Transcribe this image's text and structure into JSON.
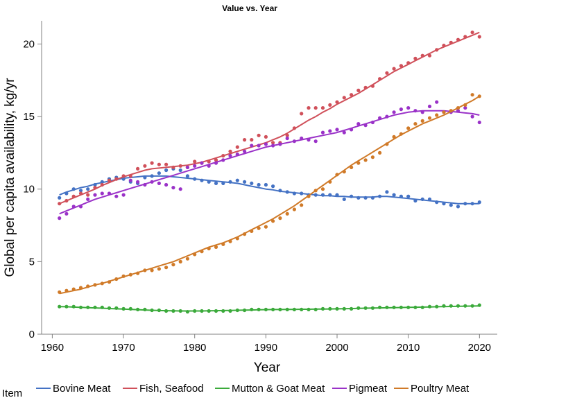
{
  "chart_data": {
    "type": "scatter",
    "title": "Value vs. Year",
    "xlabel": "Year",
    "ylabel": "Global per capita availability, kg/yr",
    "xlim": [
      1958.5,
      2022.5
    ],
    "ylim": [
      0,
      21.6
    ],
    "xticks": [
      "1960",
      "1970",
      "1980",
      "1990",
      "2000",
      "2010",
      "2020"
    ],
    "yticks": [
      "0",
      "5",
      "10",
      "15",
      "20"
    ],
    "grid": false,
    "legend": {
      "title": "Item",
      "placement": "bottom"
    },
    "x": [
      1961,
      1962,
      1963,
      1964,
      1965,
      1966,
      1967,
      1968,
      1969,
      1970,
      1971,
      1972,
      1973,
      1974,
      1975,
      1976,
      1977,
      1978,
      1979,
      1980,
      1981,
      1982,
      1983,
      1984,
      1985,
      1986,
      1987,
      1988,
      1989,
      1990,
      1991,
      1992,
      1993,
      1994,
      1995,
      1996,
      1997,
      1998,
      1999,
      2000,
      2001,
      2002,
      2003,
      2004,
      2005,
      2006,
      2007,
      2008,
      2009,
      2010,
      2011,
      2012,
      2013,
      2014,
      2015,
      2016,
      2017,
      2018,
      2019,
      2020
    ],
    "series": [
      {
        "name": "Bovine Meat",
        "color": "#4472C4",
        "values": [
          9.4,
          9.7,
          10.0,
          9.9,
          10.0,
          10.3,
          10.5,
          10.7,
          10.8,
          10.7,
          10.5,
          10.4,
          10.8,
          10.9,
          11.1,
          11.3,
          11.4,
          11.3,
          10.9,
          10.7,
          10.6,
          10.5,
          10.4,
          10.4,
          10.5,
          10.6,
          10.5,
          10.4,
          10.3,
          10.3,
          10.2,
          9.9,
          9.8,
          9.7,
          9.7,
          9.6,
          9.6,
          9.6,
          9.6,
          9.6,
          9.3,
          9.5,
          9.4,
          9.4,
          9.4,
          9.5,
          9.8,
          9.6,
          9.5,
          9.5,
          9.2,
          9.3,
          9.3,
          9.1,
          9.0,
          8.9,
          8.8,
          9.0,
          9.0,
          9.1
        ],
        "trend": [
          9.6,
          9.8,
          9.95,
          10.1,
          10.2,
          10.35,
          10.45,
          10.55,
          10.65,
          10.75,
          10.8,
          10.85,
          10.9,
          10.9,
          10.9,
          10.9,
          10.85,
          10.8,
          10.75,
          10.7,
          10.65,
          10.6,
          10.55,
          10.5,
          10.45,
          10.4,
          10.3,
          10.2,
          10.1,
          10.0,
          9.95,
          9.85,
          9.8,
          9.75,
          9.7,
          9.65,
          9.6,
          9.55,
          9.55,
          9.5,
          9.5,
          9.45,
          9.45,
          9.45,
          9.45,
          9.5,
          9.5,
          9.45,
          9.4,
          9.35,
          9.3,
          9.25,
          9.2,
          9.15,
          9.1,
          9.05,
          9.0,
          9.0,
          9.0,
          9.0
        ]
      },
      {
        "name": "Fish, Seafood",
        "color": "#D0505A",
        "values": [
          9.0,
          9.2,
          9.5,
          9.7,
          9.6,
          10.1,
          10.3,
          10.6,
          10.7,
          10.9,
          10.9,
          11.4,
          11.6,
          11.8,
          11.7,
          11.7,
          11.5,
          11.6,
          11.5,
          11.9,
          11.8,
          11.9,
          12.0,
          12.3,
          12.6,
          12.9,
          13.4,
          13.4,
          13.7,
          13.6,
          13.2,
          13.2,
          13.7,
          14.2,
          15.2,
          15.6,
          15.6,
          15.6,
          15.8,
          16.0,
          16.3,
          16.5,
          16.8,
          17.0,
          17.1,
          17.6,
          18.0,
          18.3,
          18.5,
          18.7,
          19.0,
          19.2,
          19.2,
          19.6,
          19.9,
          20.1,
          20.3,
          20.5,
          20.8,
          20.5
        ],
        "trend": [
          9.0,
          9.2,
          9.4,
          9.6,
          9.8,
          10.0,
          10.25,
          10.45,
          10.65,
          10.85,
          11.0,
          11.15,
          11.3,
          11.4,
          11.45,
          11.5,
          11.55,
          11.6,
          11.65,
          11.75,
          11.85,
          12.0,
          12.15,
          12.3,
          12.45,
          12.6,
          12.75,
          12.9,
          13.05,
          13.2,
          13.4,
          13.6,
          13.85,
          14.15,
          14.45,
          14.75,
          15.0,
          15.3,
          15.55,
          15.85,
          16.1,
          16.35,
          16.6,
          16.9,
          17.2,
          17.5,
          17.8,
          18.1,
          18.35,
          18.6,
          18.85,
          19.1,
          19.35,
          19.6,
          19.8,
          20.0,
          20.2,
          20.4,
          20.6,
          20.8
        ]
      },
      {
        "name": "Mutton & Goat Meat",
        "color": "#3BAA3B",
        "values": [
          1.9,
          1.9,
          1.9,
          1.85,
          1.85,
          1.85,
          1.85,
          1.8,
          1.8,
          1.75,
          1.75,
          1.7,
          1.7,
          1.65,
          1.65,
          1.6,
          1.6,
          1.6,
          1.55,
          1.6,
          1.6,
          1.6,
          1.6,
          1.6,
          1.6,
          1.65,
          1.65,
          1.7,
          1.7,
          1.7,
          1.7,
          1.7,
          1.7,
          1.7,
          1.7,
          1.7,
          1.7,
          1.75,
          1.75,
          1.75,
          1.75,
          1.75,
          1.8,
          1.8,
          1.8,
          1.85,
          1.85,
          1.85,
          1.85,
          1.85,
          1.85,
          1.85,
          1.9,
          1.9,
          1.95,
          1.95,
          1.95,
          1.95,
          1.95,
          2.0
        ],
        "trend": [
          1.9,
          1.89,
          1.87,
          1.85,
          1.83,
          1.81,
          1.79,
          1.77,
          1.75,
          1.73,
          1.71,
          1.69,
          1.67,
          1.65,
          1.63,
          1.62,
          1.61,
          1.6,
          1.6,
          1.6,
          1.6,
          1.61,
          1.62,
          1.63,
          1.64,
          1.65,
          1.66,
          1.67,
          1.68,
          1.69,
          1.7,
          1.7,
          1.71,
          1.71,
          1.72,
          1.72,
          1.73,
          1.73,
          1.74,
          1.75,
          1.76,
          1.77,
          1.78,
          1.79,
          1.8,
          1.81,
          1.82,
          1.83,
          1.84,
          1.85,
          1.86,
          1.87,
          1.88,
          1.89,
          1.9,
          1.91,
          1.92,
          1.93,
          1.94,
          1.95
        ]
      },
      {
        "name": "Pigmeat",
        "color": "#9A32C8",
        "values": [
          8.0,
          8.3,
          8.8,
          8.8,
          9.3,
          9.6,
          9.7,
          9.7,
          9.5,
          9.6,
          10.6,
          10.5,
          10.3,
          10.5,
          10.4,
          10.3,
          10.1,
          10.0,
          11.5,
          11.6,
          11.8,
          11.6,
          11.8,
          12.0,
          12.3,
          12.4,
          12.6,
          13.0,
          13.0,
          13.1,
          13.0,
          13.1,
          13.5,
          13.3,
          13.5,
          13.4,
          13.3,
          13.9,
          14.0,
          14.1,
          13.9,
          14.1,
          14.5,
          14.4,
          14.6,
          14.9,
          15.0,
          15.3,
          15.5,
          15.6,
          15.4,
          15.3,
          15.7,
          16.0,
          15.3,
          15.3,
          15.4,
          15.6,
          15.0,
          14.6
        ],
        "trend": [
          8.3,
          8.5,
          8.7,
          8.9,
          9.1,
          9.3,
          9.45,
          9.6,
          9.75,
          9.9,
          10.05,
          10.2,
          10.35,
          10.5,
          10.65,
          10.8,
          10.95,
          11.1,
          11.25,
          11.4,
          11.55,
          11.7,
          11.85,
          12.0,
          12.15,
          12.3,
          12.45,
          12.6,
          12.75,
          12.9,
          13.0,
          13.1,
          13.2,
          13.3,
          13.4,
          13.5,
          13.6,
          13.7,
          13.8,
          13.9,
          14.05,
          14.2,
          14.35,
          14.5,
          14.65,
          14.8,
          14.95,
          15.1,
          15.2,
          15.3,
          15.35,
          15.4,
          15.4,
          15.4,
          15.4,
          15.35,
          15.3,
          15.25,
          15.2,
          15.1
        ]
      },
      {
        "name": "Poultry Meat",
        "color": "#D07A28",
        "values": [
          2.9,
          3.0,
          3.1,
          3.2,
          3.3,
          3.4,
          3.5,
          3.6,
          3.8,
          4.0,
          4.1,
          4.2,
          4.4,
          4.4,
          4.5,
          4.6,
          4.8,
          5.0,
          5.2,
          5.5,
          5.7,
          5.9,
          6.0,
          6.2,
          6.4,
          6.6,
          6.9,
          7.1,
          7.3,
          7.4,
          7.8,
          8.0,
          8.3,
          8.6,
          8.9,
          9.5,
          9.9,
          10.0,
          10.5,
          11.0,
          11.2,
          11.5,
          11.8,
          12.0,
          12.2,
          12.5,
          13.1,
          13.6,
          13.8,
          14.2,
          14.5,
          14.7,
          14.9,
          15.1,
          15.3,
          15.4,
          15.6,
          15.8,
          16.5,
          16.4
        ],
        "trend": [
          2.8,
          2.9,
          3.0,
          3.1,
          3.25,
          3.4,
          3.5,
          3.65,
          3.8,
          3.95,
          4.1,
          4.25,
          4.4,
          4.55,
          4.7,
          4.85,
          5.0,
          5.2,
          5.4,
          5.6,
          5.8,
          6.0,
          6.15,
          6.3,
          6.5,
          6.7,
          6.95,
          7.2,
          7.45,
          7.7,
          7.95,
          8.25,
          8.55,
          8.85,
          9.2,
          9.55,
          9.9,
          10.25,
          10.6,
          10.95,
          11.3,
          11.65,
          11.95,
          12.25,
          12.55,
          12.85,
          13.15,
          13.45,
          13.75,
          14.0,
          14.25,
          14.5,
          14.7,
          14.9,
          15.1,
          15.35,
          15.6,
          15.85,
          16.1,
          16.4
        ]
      }
    ]
  }
}
